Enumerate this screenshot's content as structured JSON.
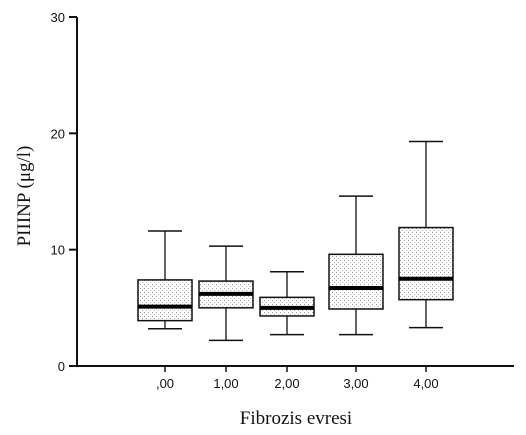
{
  "chart_data": {
    "type": "boxplot",
    "xlabel": "Fibrozis evresi",
    "ylabel": "PIIINP (μg/l)",
    "ylim": [
      0,
      30
    ],
    "y_ticks": [
      0,
      10,
      20,
      30
    ],
    "grid": false,
    "legend": "none",
    "categories": [
      ",00",
      "1,00",
      "2,00",
      "3,00",
      "4,00"
    ],
    "boxes": [
      {
        "category": ",00",
        "whisker_low": 3.2,
        "q1": 3.9,
        "median": 5.1,
        "q3": 7.4,
        "whisker_high": 11.6
      },
      {
        "category": "1,00",
        "whisker_low": 2.2,
        "q1": 5.0,
        "median": 6.2,
        "q3": 7.3,
        "whisker_high": 10.3
      },
      {
        "category": "2,00",
        "whisker_low": 2.7,
        "q1": 4.3,
        "median": 5.0,
        "q3": 5.9,
        "whisker_high": 8.1
      },
      {
        "category": "3,00",
        "whisker_low": 2.7,
        "q1": 4.9,
        "median": 6.7,
        "q3": 9.6,
        "whisker_high": 14.6
      },
      {
        "category": "4,00",
        "whisker_low": 3.3,
        "q1": 5.7,
        "median": 7.5,
        "q3": 11.9,
        "whisker_high": 19.3
      }
    ],
    "colors": {
      "box_fill": "#e6e6e6",
      "stroke": "#111111",
      "median": "#000000"
    }
  }
}
